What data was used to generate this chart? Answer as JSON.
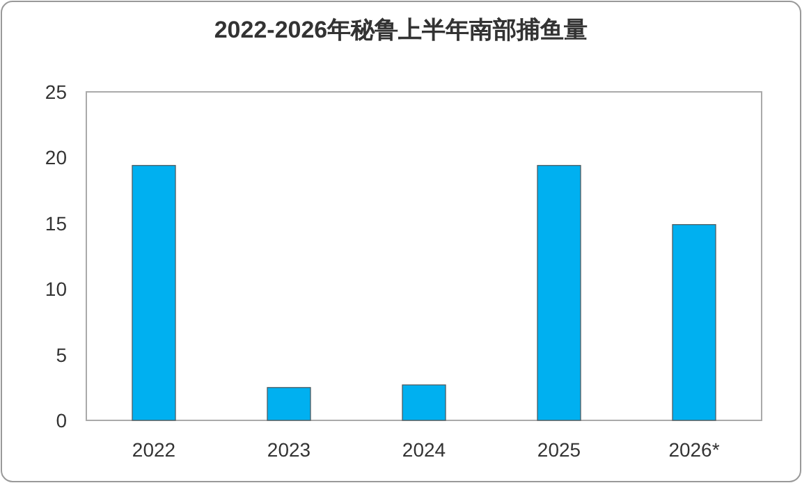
{
  "chart_data": {
    "type": "bar",
    "title": "2022-2026年秘鲁上半年南部捕鱼量",
    "categories": [
      "2022",
      "2023",
      "2024",
      "2025",
      "2026*"
    ],
    "values": [
      19.4,
      2.5,
      2.7,
      19.4,
      14.9
    ],
    "color": "#00b0f0",
    "ylim": [
      0,
      25
    ],
    "yticks": [
      0,
      5,
      10,
      15,
      20,
      25
    ],
    "grid": false
  }
}
